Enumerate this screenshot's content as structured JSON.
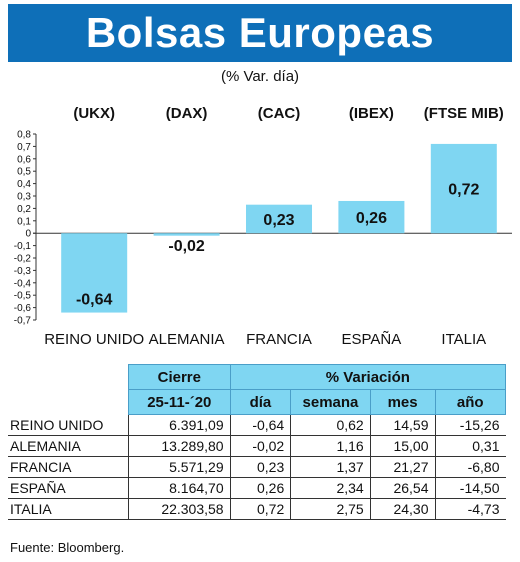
{
  "header": {
    "title": "Bolsas Europeas",
    "subtitle": "(% Var. día)"
  },
  "chart_data": {
    "type": "bar",
    "indices": [
      "(UKX)",
      "(DAX)",
      "(CAC)",
      "(IBEX)",
      "(FTSE MIB)"
    ],
    "categories": [
      "REINO UNIDO",
      "ALEMANIA",
      "FRANCIA",
      "ESPAÑA",
      "ITALIA"
    ],
    "values": [
      -0.64,
      -0.02,
      0.23,
      0.26,
      0.72
    ],
    "value_labels": [
      "-0,64",
      "-0,02",
      "0,23",
      "0,26",
      "0,72"
    ],
    "ylim": [
      -0.7,
      0.8
    ],
    "yticks": [
      "0,8",
      "0,7",
      "0,6",
      "0,5",
      "0,4",
      "0,3",
      "0,2",
      "0,1",
      "0",
      "-0,1",
      "-0,2",
      "-0,3",
      "-0,4",
      "-0,5",
      "-0,6",
      "-0,7"
    ],
    "bar_color": "#7fd6f2",
    "grid": false
  },
  "table": {
    "group_headers": {
      "cierre": "Cierre",
      "variacion": "% Variación"
    },
    "col_headers": [
      "25-11-´20",
      "día",
      "semana",
      "mes",
      "año"
    ],
    "rows": [
      {
        "name": "REINO UNIDO",
        "cierre": "6.391,09",
        "dia": "-0,64",
        "semana": "0,62",
        "mes": "14,59",
        "ano": "-15,26"
      },
      {
        "name": "ALEMANIA",
        "cierre": "13.289,80",
        "dia": "-0,02",
        "semana": "1,16",
        "mes": "15,00",
        "ano": "0,31"
      },
      {
        "name": "FRANCIA",
        "cierre": "5.571,29",
        "dia": "0,23",
        "semana": "1,37",
        "mes": "21,27",
        "ano": "-6,80"
      },
      {
        "name": "ESPAÑA",
        "cierre": "8.164,70",
        "dia": "0,26",
        "semana": "2,34",
        "mes": "26,54",
        "ano": "-14,50"
      },
      {
        "name": "ITALIA",
        "cierre": "22.303,58",
        "dia": "0,72",
        "semana": "2,75",
        "mes": "24,30",
        "ano": "-4,73"
      }
    ]
  },
  "source": "Fuente: Bloomberg."
}
